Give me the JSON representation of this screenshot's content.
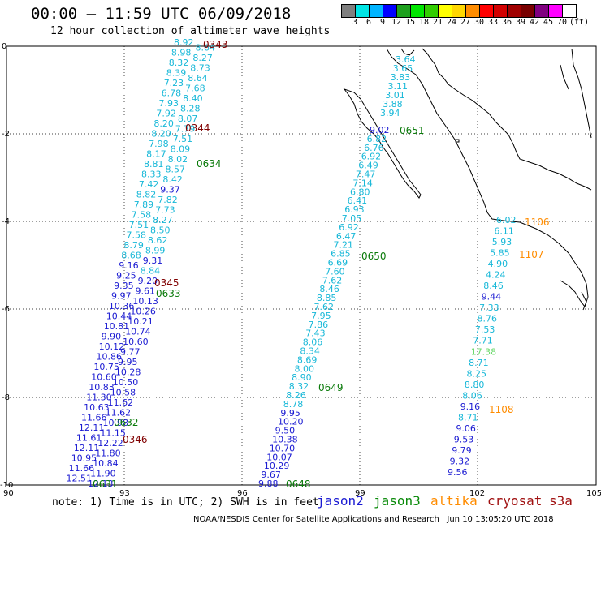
{
  "title": "00:00 – 11:59 UTC 06/09/2018",
  "subtitle": "12 hour collection of altimeter wave heights",
  "colorbar": {
    "colors": [
      "#7f7f7f",
      "#00e5e5",
      "#00b4ff",
      "#0000ff",
      "#1ea01e",
      "#00e600",
      "#32cd00",
      "#ffff00",
      "#ffd700",
      "#ff8c00",
      "#ff0000",
      "#d20000",
      "#a00000",
      "#780000",
      "#800080",
      "#ff00ff",
      "#ffffff"
    ],
    "labels": [
      "3",
      "6",
      "9",
      "12",
      "15",
      "18",
      "21",
      "24",
      "27",
      "30",
      "33",
      "36",
      "39",
      "42",
      "45",
      "70",
      "(ft)"
    ]
  },
  "axes": {
    "x_ticks": [
      "90",
      "93",
      "96",
      "99",
      "102",
      "105"
    ],
    "y_ticks": [
      "0",
      "-2",
      "-4",
      "-6",
      "-8",
      "-10"
    ]
  },
  "legend": {
    "note": "note: 1) Time is in UTC; 2) SWH is in feet",
    "sat1": "jason2",
    "sat2": "jason3",
    "sat3": "altika",
    "sat4": "cryosat",
    "sat5": "s3a"
  },
  "credit": "NOAA/NESDIS Center for Satellite Applications and Research   Jun 10 13:05:20 UTC 2018",
  "colors": {
    "jason2": "#1a1ad2",
    "jason3": "#0a8a0a",
    "altika": "#ff8c00",
    "cryosat": "#a01010",
    "cyan": "#18b8d8",
    "green": "#6ad86a"
  },
  "tracks": {
    "track_a_values": [
      "8.92",
      "8.64",
      "8.98",
      "8.27",
      "8.32",
      "8.73",
      "8.39",
      "8.64",
      "7.23",
      "7.68",
      "6.78",
      "8.40",
      "7.93",
      "8.28",
      "7.92",
      "8.07",
      "8.20",
      "7.79",
      "8.20",
      "7.51",
      "7.98",
      "8.09",
      "8.17",
      "8.02",
      "8.81",
      "8.57",
      "8.33",
      "8.42",
      "7.42",
      "9.37",
      "8.82",
      "7.82",
      "7.89",
      "7.73",
      "7.58",
      "8.27",
      "7.51",
      "8.50",
      "7.58",
      "8.62",
      "8.79",
      "8.99",
      "8.68",
      "9.31",
      "9.16",
      "8.84",
      "9.25",
      "9.20",
      "9.35",
      "9.61",
      "9.97",
      "10.13",
      "10.36",
      "10.26",
      "10.44",
      "10.21",
      "10.81",
      "10.74",
      "9.90",
      "10.60",
      "10.12",
      "9.77",
      "10.86",
      "9.95",
      "10.75",
      "10.28",
      "10.60",
      "10.50",
      "10.83",
      "10.58",
      "11.30",
      "11.62",
      "10.63",
      "11.62",
      "11.66",
      "10.98",
      "12.11",
      "11.15",
      "11.61",
      "12.22",
      "12.11",
      "11.80",
      "10.95",
      "10.84",
      "11.66",
      "11.90",
      "12.51",
      "12.13"
    ],
    "track_b_values": [
      "9.02",
      "6.82",
      "6.76",
      "6.92",
      "6.49",
      "7.47",
      "7.14",
      "6.80",
      "6.41",
      "6.93",
      "7.05",
      "6.92",
      "6.47",
      "7.21",
      "6.85",
      "6.69",
      "7.60",
      "7.62",
      "8.46",
      "8.85",
      "7.62",
      "7.95",
      "7.86",
      "7.43",
      "8.06",
      "8.34",
      "8.69",
      "8.00",
      "8.90",
      "8.32",
      "8.26",
      "8.78",
      "9.95",
      "10.20",
      "9.50",
      "10.38",
      "10.70",
      "10.07",
      "10.29",
      "9.67",
      "9.88"
    ],
    "track_c_values": [
      "3.64",
      "3.65",
      "3.83",
      "3.11",
      "3.01",
      "3.88",
      "3.94"
    ],
    "track_d_values": [
      "6.02",
      "6.11",
      "5.93",
      "5.85",
      "4.90",
      "4.24",
      "8.46",
      "9.44",
      "7.33",
      "8.76",
      "7.53",
      "7.71",
      "17.38",
      "8.71",
      "8.25",
      "8.80",
      "8.06",
      "9.16",
      "8.71",
      "9.06",
      "9.53",
      "9.79",
      "9.32",
      "9.56"
    ],
    "times": {
      "t0343": "0343",
      "t0344": "0344",
      "t0634": "0634",
      "t0345": "0345",
      "t0633": "0633",
      "t0632": "0632",
      "t0346": "0346",
      "t0631": "0631",
      "t0651": "0651",
      "t0650": "0650",
      "t0649": "0649",
      "t0648": "0648",
      "t1106": "1106",
      "t1107": "1107",
      "t1108": "1108"
    }
  }
}
